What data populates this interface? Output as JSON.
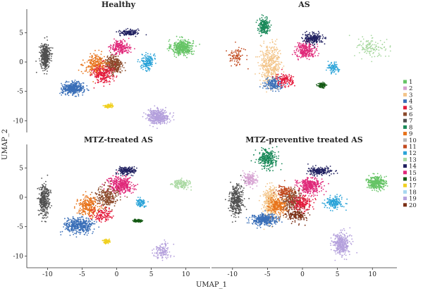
{
  "chart_data": {
    "type": "scatter",
    "xlabel": "UMAP_1",
    "ylabel": "UMAP_2",
    "xlim": [
      -13,
      13.5
    ],
    "ylim": [
      -12,
      9
    ],
    "x_ticks": [
      -10,
      -5,
      0,
      5,
      10
    ],
    "y_ticks": [
      5,
      0,
      -5,
      -10
    ],
    "grid": false,
    "legend_position": "right",
    "legend": [
      {
        "label": "1",
        "color": "#66c466"
      },
      {
        "label": "2",
        "color": "#d59fd0"
      },
      {
        "label": "3",
        "color": "#f3c58a"
      },
      {
        "label": "4",
        "color": "#3a6fb8"
      },
      {
        "label": "5",
        "color": "#e41a3c"
      },
      {
        "label": "6",
        "color": "#8b4a2b"
      },
      {
        "label": "7",
        "color": "#505050"
      },
      {
        "label": "8",
        "color": "#1b8a5a"
      },
      {
        "label": "9",
        "color": "#e8731a"
      },
      {
        "label": "10",
        "color": "#b8b8b8"
      },
      {
        "label": "11",
        "color": "#c24a1f"
      },
      {
        "label": "12",
        "color": "#2aa3d8"
      },
      {
        "label": "13",
        "color": "#a8d8a0"
      },
      {
        "label": "14",
        "color": "#202060"
      },
      {
        "label": "15",
        "color": "#e0297a"
      },
      {
        "label": "16",
        "color": "#145a14"
      },
      {
        "label": "17",
        "color": "#f0d020"
      },
      {
        "label": "18",
        "color": "#a8d8f0"
      },
      {
        "label": "19",
        "color": "#b4a0dc"
      },
      {
        "label": "20",
        "color": "#7a2e14"
      }
    ],
    "panels": [
      {
        "title": "Healthy",
        "clusters": [
          {
            "cluster": "1",
            "center": [
              9.5,
              2.5
            ],
            "spread": [
              1.4,
              1.2
            ],
            "share": 1.0
          },
          {
            "cluster": "19",
            "center": [
              6.0,
              -9.3
            ],
            "spread": [
              1.4,
              1.1
            ],
            "share": 1.0
          },
          {
            "cluster": "4",
            "center": [
              -6.3,
              -4.5
            ],
            "spread": [
              1.4,
              0.9
            ],
            "share": 1.0
          },
          {
            "cluster": "7",
            "center": [
              -10.3,
              1.0
            ],
            "spread": [
              0.6,
              1.8
            ],
            "share": 1.0
          },
          {
            "cluster": "6",
            "center": [
              -0.5,
              -0.5
            ],
            "spread": [
              1.2,
              1.5
            ],
            "share": 0.8
          },
          {
            "cluster": "9",
            "center": [
              -3.0,
              -0.5
            ],
            "spread": [
              1.5,
              1.6
            ],
            "share": 0.6
          },
          {
            "cluster": "15",
            "center": [
              0.5,
              2.5
            ],
            "spread": [
              1.2,
              1.0
            ],
            "share": 0.5
          },
          {
            "cluster": "12",
            "center": [
              4.5,
              0.0
            ],
            "spread": [
              0.8,
              1.2
            ],
            "share": 0.4
          },
          {
            "cluster": "5",
            "center": [
              -2.0,
              -2.0
            ],
            "spread": [
              1.4,
              1.5
            ],
            "share": 0.5
          },
          {
            "cluster": "14",
            "center": [
              1.8,
              5.0
            ],
            "spread": [
              1.2,
              0.5
            ],
            "share": 0.3
          },
          {
            "cluster": "17",
            "center": [
              -1.2,
              -7.5
            ],
            "spread": [
              0.5,
              0.3
            ],
            "share": 0.2
          }
        ]
      },
      {
        "title": "AS",
        "clusters": [
          {
            "cluster": "3",
            "center": [
              -4.5,
              -0.5
            ],
            "spread": [
              1.4,
              3.0
            ],
            "share": 1.0
          },
          {
            "cluster": "8",
            "center": [
              -5.5,
              6.2
            ],
            "spread": [
              0.7,
              1.2
            ],
            "share": 0.5
          },
          {
            "cluster": "15",
            "center": [
              0.5,
              2.0
            ],
            "spread": [
              1.3,
              1.1
            ],
            "share": 0.6
          },
          {
            "cluster": "14",
            "center": [
              1.5,
              4.0
            ],
            "spread": [
              1.3,
              0.8
            ],
            "share": 0.5
          },
          {
            "cluster": "4",
            "center": [
              -4.2,
              -3.8
            ],
            "spread": [
              1.2,
              0.9
            ],
            "share": 0.4
          },
          {
            "cluster": "5",
            "center": [
              -2.5,
              -3.0
            ],
            "spread": [
              1.2,
              1.0
            ],
            "share": 0.3
          },
          {
            "cluster": "13",
            "center": [
              10.0,
              2.5
            ],
            "spread": [
              2.0,
              1.5
            ],
            "share": 0.3
          },
          {
            "cluster": "16",
            "center": [
              2.8,
              -4.0
            ],
            "spread": [
              0.5,
              0.4
            ],
            "share": 0.2
          },
          {
            "cluster": "11",
            "center": [
              -9.5,
              1.0
            ],
            "spread": [
              1.0,
              1.5
            ],
            "share": 0.2
          },
          {
            "cluster": "12",
            "center": [
              4.5,
              -1.0
            ],
            "spread": [
              0.8,
              0.8
            ],
            "share": 0.2
          }
        ]
      },
      {
        "title": "MTZ-treated AS",
        "clusters": [
          {
            "cluster": "4",
            "center": [
              -5.5,
              -4.8
            ],
            "spread": [
              1.8,
              1.2
            ],
            "share": 1.0
          },
          {
            "cluster": "7",
            "center": [
              -10.5,
              -0.5
            ],
            "spread": [
              0.7,
              2.5
            ],
            "share": 0.8
          },
          {
            "cluster": "15",
            "center": [
              0.5,
              2.0
            ],
            "spread": [
              1.6,
              1.3
            ],
            "share": 0.9
          },
          {
            "cluster": "9",
            "center": [
              -4.0,
              -1.5
            ],
            "spread": [
              1.5,
              1.5
            ],
            "share": 0.6
          },
          {
            "cluster": "6",
            "center": [
              -1.5,
              0.0
            ],
            "spread": [
              1.5,
              1.5
            ],
            "share": 0.6
          },
          {
            "cluster": "14",
            "center": [
              1.5,
              4.5
            ],
            "spread": [
              1.2,
              0.6
            ],
            "share": 0.4
          },
          {
            "cluster": "13",
            "center": [
              9.3,
              2.3
            ],
            "spread": [
              1.2,
              0.7
            ],
            "share": 0.3
          },
          {
            "cluster": "19",
            "center": [
              6.5,
              -9.0
            ],
            "spread": [
              1.2,
              1.2
            ],
            "share": 0.3
          },
          {
            "cluster": "12",
            "center": [
              3.5,
              -1.0
            ],
            "spread": [
              0.6,
              0.6
            ],
            "share": 0.2
          },
          {
            "cluster": "16",
            "center": [
              3.0,
              -4.0
            ],
            "spread": [
              0.6,
              0.2
            ],
            "share": 0.2
          },
          {
            "cluster": "5",
            "center": [
              -2.0,
              -3.0
            ],
            "spread": [
              1.3,
              1.0
            ],
            "share": 0.3
          },
          {
            "cluster": "17",
            "center": [
              -1.5,
              -7.5
            ],
            "spread": [
              0.5,
              0.3
            ],
            "share": 0.15
          }
        ]
      },
      {
        "title": "MTZ-preventive treated AS",
        "clusters": [
          {
            "cluster": "3",
            "center": [
              -4.5,
              -1.0
            ],
            "spread": [
              1.0,
              2.5
            ],
            "share": 1.0
          },
          {
            "cluster": "8",
            "center": [
              -5.0,
              6.5
            ],
            "spread": [
              1.2,
              1.5
            ],
            "share": 0.7
          },
          {
            "cluster": "1",
            "center": [
              10.5,
              2.5
            ],
            "spread": [
              1.2,
              1.0
            ],
            "share": 0.8
          },
          {
            "cluster": "19",
            "center": [
              5.5,
              -8.0
            ],
            "spread": [
              1.1,
              1.7
            ],
            "share": 0.8
          },
          {
            "cluster": "4",
            "center": [
              -5.5,
              -3.8
            ],
            "spread": [
              1.6,
              0.9
            ],
            "share": 0.9
          },
          {
            "cluster": "7",
            "center": [
              -9.5,
              -0.5
            ],
            "spread": [
              0.9,
              2.5
            ],
            "share": 0.8
          },
          {
            "cluster": "15",
            "center": [
              1.0,
              2.0
            ],
            "spread": [
              1.5,
              1.2
            ],
            "share": 0.8
          },
          {
            "cluster": "6",
            "center": [
              -1.5,
              -0.5
            ],
            "spread": [
              1.2,
              1.5
            ],
            "share": 0.7
          },
          {
            "cluster": "14",
            "center": [
              2.5,
              4.5
            ],
            "spread": [
              1.5,
              0.6
            ],
            "share": 0.5
          },
          {
            "cluster": "9",
            "center": [
              -3.5,
              -1.5
            ],
            "spread": [
              1.2,
              1.2
            ],
            "share": 0.5
          },
          {
            "cluster": "12",
            "center": [
              4.5,
              -1.0
            ],
            "spread": [
              1.2,
              1.0
            ],
            "share": 0.4
          },
          {
            "cluster": "20",
            "center": [
              -1.0,
              -3.0
            ],
            "spread": [
              1.4,
              1.0
            ],
            "share": 0.4
          },
          {
            "cluster": "2",
            "center": [
              -7.5,
              3.0
            ],
            "spread": [
              1.0,
              1.0
            ],
            "share": 0.3
          },
          {
            "cluster": "11",
            "center": [
              -2.5,
              1.0
            ],
            "spread": [
              1.0,
              1.0
            ],
            "share": 0.3
          },
          {
            "cluster": "5",
            "center": [
              0.0,
              -1.0
            ],
            "spread": [
              1.3,
              1.2
            ],
            "share": 0.4
          }
        ]
      }
    ]
  }
}
